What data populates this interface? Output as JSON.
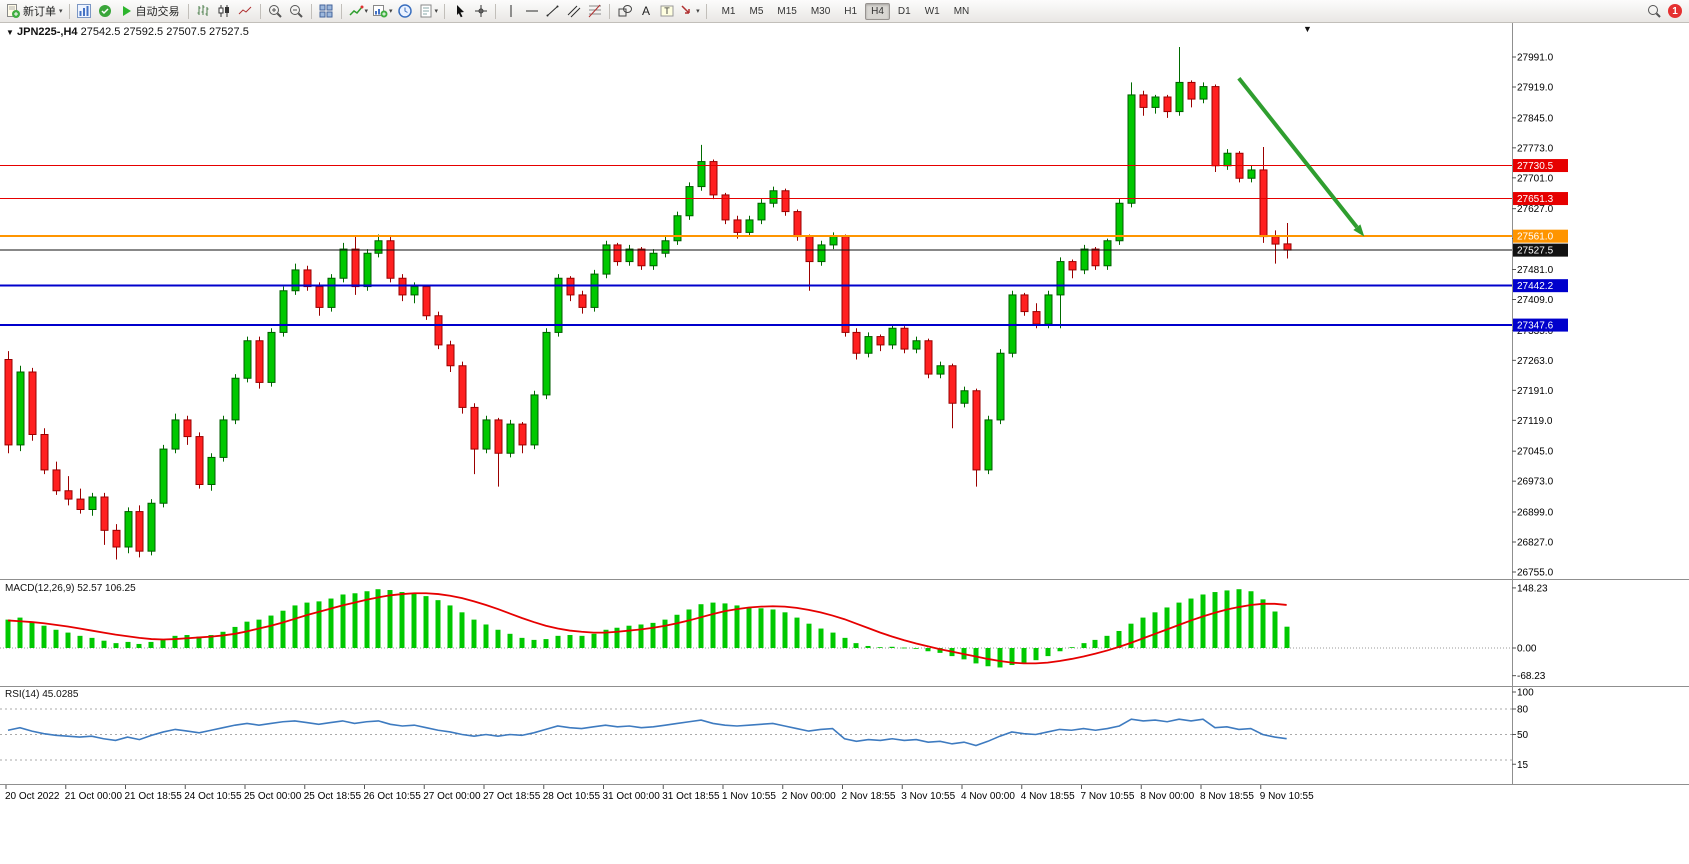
{
  "toolbar": {
    "new_order": "新订单",
    "auto_trading": "自动交易",
    "timeframes": [
      "M1",
      "M5",
      "M15",
      "M30",
      "H1",
      "H4",
      "D1",
      "W1",
      "MN"
    ],
    "active_timeframe": "H4",
    "alert_count": "1",
    "icons": [
      "new-order",
      "charts",
      "metaeditor",
      "auto-trading",
      "bar-chart-mode",
      "candlestick-mode",
      "line-chart-mode",
      "zoom-in",
      "zoom-out",
      "tile-windows",
      "indicators",
      "new-chart",
      "clock",
      "templates",
      "cursor",
      "crosshair",
      "vertical-line",
      "horizontal-line",
      "trendline",
      "equidistant-channel",
      "fibonacci",
      "shapes",
      "text",
      "text-label",
      "arrows",
      "search",
      "alerts"
    ]
  },
  "chart": {
    "title": "JPN225-,H4",
    "ohlc_text": "27542.5 27592.5 27507.5 27527.5"
  },
  "macd": {
    "label": "MACD(12,26,9) 52.57 106.25",
    "axis": [
      "148.23",
      "0.00",
      "-68.23"
    ]
  },
  "rsi": {
    "label": "RSI(14) 45.0285",
    "axis": [
      "100",
      "80",
      "50",
      "15"
    ],
    "levels": [
      80,
      50,
      20
    ]
  },
  "chart_data": {
    "type": "candlestick",
    "symbol": "JPN225-",
    "timeframe": "H4",
    "current_ohlc": {
      "open": 27542.5,
      "high": 27592.5,
      "low": 27507.5,
      "close": 27527.5
    },
    "price_ticks": [
      "27991.0",
      "27919.0",
      "27845.0",
      "27773.0",
      "27701.0",
      "27627.0",
      "27555.0",
      "27481.0",
      "27409.0",
      "27335.0",
      "27263.0",
      "27191.0",
      "27119.0",
      "27045.0",
      "26973.0",
      "26899.0",
      "26827.0",
      "26755.0"
    ],
    "hlines": [
      {
        "price": 27730.5,
        "label": "27730.5",
        "color": "#e60000",
        "width": 1.2
      },
      {
        "price": 27651.3,
        "label": "27651.3",
        "color": "#e60000",
        "width": 1.2
      },
      {
        "price": 27561.0,
        "label": "27561.0",
        "color": "#ff9500",
        "width": 2
      },
      {
        "price": 27527.5,
        "label": "27527.5",
        "color": "#111111",
        "width": 1
      },
      {
        "price": 27442.2,
        "label": "27442.2",
        "color": "#0000cc",
        "width": 2
      },
      {
        "price": 27347.6,
        "label": "27347.6",
        "color": "#0000cc",
        "width": 2
      }
    ],
    "arrow": {
      "from_bar": 103,
      "from_price": 27940,
      "to_bar": 113.5,
      "to_price": 27560,
      "color": "#2f9e2f"
    },
    "time_labels": [
      "20 Oct 2022",
      "21 Oct 00:00",
      "21 Oct 18:55",
      "24 Oct 10:55",
      "25 Oct 00:00",
      "25 Oct 18:55",
      "26 Oct 10:55",
      "27 Oct 00:00",
      "27 Oct 18:55",
      "28 Oct 10:55",
      "31 Oct 00:00",
      "31 Oct 18:55",
      "1 Nov 10:55",
      "2 Nov 00:00",
      "2 Nov 18:55",
      "3 Nov 10:55",
      "4 Nov 00:00",
      "4 Nov 18:55",
      "7 Nov 10:55",
      "8 Nov 00:00",
      "8 Nov 18:55",
      "9 Nov 10:55"
    ],
    "candles": [
      [
        27265,
        27285,
        27040,
        27060
      ],
      [
        27060,
        27250,
        27045,
        27235
      ],
      [
        27235,
        27245,
        27070,
        27085
      ],
      [
        27085,
        27100,
        26990,
        27000
      ],
      [
        27000,
        27020,
        26940,
        26950
      ],
      [
        26950,
        26985,
        26915,
        26930
      ],
      [
        26930,
        26955,
        26895,
        26905
      ],
      [
        26905,
        26945,
        26890,
        26935
      ],
      [
        26935,
        26945,
        26820,
        26855
      ],
      [
        26855,
        26870,
        26785,
        26815
      ],
      [
        26815,
        26910,
        26800,
        26900
      ],
      [
        26900,
        26915,
        26790,
        26805
      ],
      [
        26805,
        26930,
        26795,
        26920
      ],
      [
        26920,
        27060,
        26910,
        27050
      ],
      [
        27050,
        27135,
        27040,
        27120
      ],
      [
        27120,
        27130,
        27060,
        27080
      ],
      [
        27080,
        27090,
        26955,
        26965
      ],
      [
        26965,
        27040,
        26950,
        27030
      ],
      [
        27030,
        27130,
        27020,
        27120
      ],
      [
        27120,
        27230,
        27110,
        27220
      ],
      [
        27220,
        27320,
        27210,
        27310
      ],
      [
        27310,
        27320,
        27195,
        27210
      ],
      [
        27210,
        27340,
        27200,
        27330
      ],
      [
        27330,
        27440,
        27320,
        27430
      ],
      [
        27430,
        27495,
        27420,
        27480
      ],
      [
        27480,
        27490,
        27430,
        27440
      ],
      [
        27440,
        27450,
        27370,
        27390
      ],
      [
        27390,
        27470,
        27380,
        27460
      ],
      [
        27460,
        27545,
        27450,
        27530
      ],
      [
        27530,
        27560,
        27420,
        27440
      ],
      [
        27440,
        27530,
        27430,
        27520
      ],
      [
        27520,
        27565,
        27510,
        27550
      ],
      [
        27550,
        27560,
        27450,
        27460
      ],
      [
        27460,
        27470,
        27405,
        27420
      ],
      [
        27420,
        27450,
        27400,
        27440
      ],
      [
        27440,
        27445,
        27360,
        27370
      ],
      [
        27370,
        27380,
        27290,
        27300
      ],
      [
        27300,
        27310,
        27235,
        27250
      ],
      [
        27250,
        27260,
        27135,
        27150
      ],
      [
        27150,
        27160,
        26990,
        27050
      ],
      [
        27050,
        27130,
        27040,
        27120
      ],
      [
        27120,
        27125,
        26960,
        27040
      ],
      [
        27040,
        27120,
        27030,
        27110
      ],
      [
        27110,
        27115,
        27040,
        27060
      ],
      [
        27060,
        27190,
        27050,
        27180
      ],
      [
        27180,
        27340,
        27170,
        27330
      ],
      [
        27330,
        27470,
        27320,
        27460
      ],
      [
        27460,
        27465,
        27405,
        27420
      ],
      [
        27420,
        27430,
        27375,
        27390
      ],
      [
        27390,
        27480,
        27380,
        27470
      ],
      [
        27470,
        27550,
        27460,
        27540
      ],
      [
        27540,
        27545,
        27490,
        27500
      ],
      [
        27500,
        27540,
        27490,
        27530
      ],
      [
        27530,
        27535,
        27480,
        27490
      ],
      [
        27490,
        27530,
        27480,
        27520
      ],
      [
        27520,
        27560,
        27510,
        27550
      ],
      [
        27550,
        27620,
        27540,
        27610
      ],
      [
        27610,
        27690,
        27600,
        27680
      ],
      [
        27680,
        27780,
        27670,
        27740
      ],
      [
        27740,
        27745,
        27650,
        27660
      ],
      [
        27660,
        27665,
        27590,
        27600
      ],
      [
        27600,
        27610,
        27555,
        27570
      ],
      [
        27570,
        27610,
        27560,
        27600
      ],
      [
        27600,
        27650,
        27590,
        27640
      ],
      [
        27640,
        27680,
        27630,
        27670
      ],
      [
        27670,
        27675,
        27610,
        27620
      ],
      [
        27620,
        27625,
        27550,
        27560
      ],
      [
        27560,
        27565,
        27430,
        27500
      ],
      [
        27500,
        27550,
        27490,
        27540
      ],
      [
        27540,
        27570,
        27530,
        27560
      ],
      [
        27560,
        27565,
        27320,
        27330
      ],
      [
        27330,
        27340,
        27265,
        27280
      ],
      [
        27280,
        27330,
        27270,
        27320
      ],
      [
        27320,
        27325,
        27285,
        27300
      ],
      [
        27300,
        27350,
        27290,
        27340
      ],
      [
        27340,
        27345,
        27280,
        27290
      ],
      [
        27290,
        27320,
        27280,
        27310
      ],
      [
        27310,
        27315,
        27220,
        27230
      ],
      [
        27230,
        27260,
        27220,
        27250
      ],
      [
        27250,
        27255,
        27100,
        27160
      ],
      [
        27160,
        27200,
        27150,
        27190
      ],
      [
        27190,
        27195,
        26960,
        27000
      ],
      [
        27000,
        27130,
        26990,
        27120
      ],
      [
        27120,
        27290,
        27110,
        27280
      ],
      [
        27280,
        27430,
        27270,
        27420
      ],
      [
        27420,
        27425,
        27370,
        27380
      ],
      [
        27380,
        27400,
        27340,
        27350
      ],
      [
        27350,
        27430,
        27340,
        27420
      ],
      [
        27420,
        27510,
        27340,
        27500
      ],
      [
        27500,
        27505,
        27460,
        27480
      ],
      [
        27480,
        27540,
        27470,
        27530
      ],
      [
        27530,
        27535,
        27480,
        27490
      ],
      [
        27490,
        27555,
        27480,
        27550
      ],
      [
        27550,
        27650,
        27540,
        27640
      ],
      [
        27640,
        27930,
        27630,
        27900
      ],
      [
        27900,
        27910,
        27850,
        27870
      ],
      [
        27870,
        27900,
        27855,
        27895
      ],
      [
        27895,
        27900,
        27845,
        27860
      ],
      [
        27860,
        28015,
        27850,
        27930
      ],
      [
        27930,
        27935,
        27870,
        27890
      ],
      [
        27890,
        27930,
        27880,
        27920
      ],
      [
        27920,
        27925,
        27715,
        27730
      ],
      [
        27730,
        27770,
        27720,
        27760
      ],
      [
        27760,
        27765,
        27690,
        27700
      ],
      [
        27700,
        27730,
        27690,
        27720
      ],
      [
        27720,
        27775,
        27545,
        27560
      ],
      [
        27560,
        27575,
        27495,
        27542
      ],
      [
        27542.5,
        27592.5,
        27507.5,
        27527.5
      ]
    ],
    "macd_histogram": [
      70,
      75,
      65,
      55,
      45,
      38,
      30,
      25,
      18,
      12,
      15,
      10,
      15,
      22,
      30,
      32,
      28,
      32,
      40,
      52,
      65,
      70,
      80,
      92,
      105,
      112,
      115,
      122,
      132,
      135,
      140,
      145,
      143,
      138,
      135,
      128,
      118,
      105,
      88,
      70,
      58,
      45,
      35,
      25,
      20,
      22,
      30,
      32,
      30,
      35,
      45,
      50,
      55,
      58,
      62,
      70,
      82,
      95,
      108,
      112,
      110,
      105,
      100,
      98,
      95,
      88,
      75,
      60,
      48,
      38,
      25,
      12,
      5,
      2,
      3,
      1,
      -2,
      -8,
      -12,
      -20,
      -28,
      -38,
      -45,
      -48,
      -42,
      -38,
      -30,
      -20,
      -8,
      2,
      12,
      20,
      30,
      42,
      60,
      75,
      88,
      100,
      112,
      122,
      132,
      138,
      142,
      145,
      140,
      120,
      90,
      52.57
    ],
    "macd_signal": [
      68,
      66,
      64,
      61,
      57,
      53,
      48,
      43,
      38,
      33,
      29,
      25,
      22,
      21,
      22,
      24,
      26,
      28,
      31,
      35,
      41,
      48,
      55,
      63,
      72,
      81,
      89,
      97,
      105,
      112,
      119,
      125,
      130,
      133,
      135,
      135,
      133,
      129,
      123,
      115,
      106,
      96,
      85,
      74,
      64,
      55,
      48,
      43,
      40,
      38,
      38,
      40,
      43,
      46,
      50,
      55,
      61,
      68,
      76,
      84,
      91,
      96,
      100,
      102,
      103,
      102,
      99,
      94,
      88,
      80,
      71,
      60,
      49,
      38,
      28,
      19,
      11,
      4,
      -3,
      -9,
      -15,
      -21,
      -27,
      -32,
      -36,
      -38,
      -38,
      -36,
      -32,
      -27,
      -21,
      -14,
      -6,
      3,
      13,
      24,
      35,
      46,
      57,
      68,
      78,
      87,
      95,
      101,
      106,
      109,
      109,
      106.25
    ],
    "rsi": [
      55,
      58,
      54,
      51,
      49,
      48,
      47,
      48,
      45,
      43,
      47,
      44,
      49,
      53,
      56,
      54,
      52,
      55,
      58,
      61,
      63,
      61,
      63,
      65,
      66,
      64,
      62,
      64,
      66,
      63,
      65,
      66,
      62,
      60,
      61,
      58,
      55,
      53,
      50,
      48,
      50,
      48,
      50,
      49,
      52,
      56,
      60,
      58,
      57,
      59,
      61,
      59,
      60,
      58,
      59,
      61,
      63,
      65,
      67,
      63,
      61,
      60,
      61,
      62,
      63,
      60,
      57,
      54,
      56,
      57,
      45,
      42,
      44,
      43,
      45,
      43,
      44,
      41,
      42,
      39,
      41,
      37,
      42,
      48,
      53,
      51,
      50,
      53,
      56,
      55,
      57,
      55,
      57,
      60,
      68,
      66,
      67,
      65,
      68,
      66,
      68,
      58,
      59,
      56,
      57,
      50,
      47,
      45.03
    ]
  }
}
